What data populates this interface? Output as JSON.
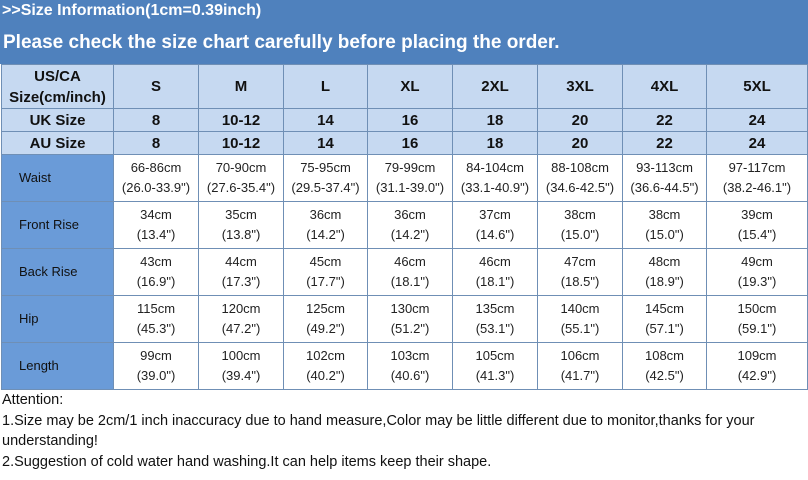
{
  "header": {
    "title": ">>Size Information(1cm=0.39inch)",
    "subtitle": "Please check the size chart carefully before placing the order."
  },
  "table": {
    "corner": [
      "US/CA",
      "Size(cm/inch)"
    ],
    "sizes": [
      "S",
      "M",
      "L",
      "XL",
      "2XL",
      "3XL",
      "4XL",
      "5XL"
    ],
    "uk": {
      "label": "UK Size",
      "values": [
        "8",
        "10-12",
        "14",
        "16",
        "18",
        "20",
        "22",
        "24"
      ]
    },
    "au": {
      "label": "AU Size",
      "values": [
        "8",
        "10-12",
        "14",
        "16",
        "18",
        "20",
        "22",
        "24"
      ]
    },
    "measures": [
      {
        "label": "Waist",
        "cm": [
          "66-86cm",
          "70-90cm",
          "75-95cm",
          "79-99cm",
          "84-104cm",
          "88-108cm",
          "93-113cm",
          "97-117cm"
        ],
        "inch": [
          "(26.0-33.9\")",
          "(27.6-35.4\")",
          "(29.5-37.4\")",
          "(31.1-39.0\")",
          "(33.1-40.9\")",
          "(34.6-42.5\")",
          "(36.6-44.5\")",
          "(38.2-46.1\")"
        ]
      },
      {
        "label": "Front Rise",
        "cm": [
          "34cm",
          "35cm",
          "36cm",
          "36cm",
          "37cm",
          "38cm",
          "38cm",
          "39cm"
        ],
        "inch": [
          "(13.4\")",
          "(13.8\")",
          "(14.2\")",
          "(14.2\")",
          "(14.6\")",
          "(15.0\")",
          "(15.0\")",
          "(15.4\")"
        ]
      },
      {
        "label": "Back Rise",
        "cm": [
          "43cm",
          "44cm",
          "45cm",
          "46cm",
          "46cm",
          "47cm",
          "48cm",
          "49cm"
        ],
        "inch": [
          "(16.9\")",
          "(17.3\")",
          "(17.7\")",
          "(18.1\")",
          "(18.1\")",
          "(18.5\")",
          "(18.9\")",
          "(19.3\")"
        ]
      },
      {
        "label": "Hip",
        "cm": [
          "115cm",
          "120cm",
          "125cm",
          "130cm",
          "135cm",
          "140cm",
          "145cm",
          "150cm"
        ],
        "inch": [
          "(45.3\")",
          "(47.2\")",
          "(49.2\")",
          "(51.2\")",
          "(53.1\")",
          "(55.1\")",
          "(57.1\")",
          "(59.1\")"
        ]
      },
      {
        "label": "Length",
        "cm": [
          "99cm",
          "100cm",
          "102cm",
          "103cm",
          "105cm",
          "106cm",
          "108cm",
          "109cm"
        ],
        "inch": [
          "(39.0\")",
          "(39.4\")",
          "(40.2\")",
          "(40.6\")",
          "(41.3\")",
          "(41.7\")",
          "(42.5\")",
          "(42.9\")"
        ]
      }
    ]
  },
  "notes": [
    "Attention:",
    "1.Size may be 2cm/1 inch inaccuracy due to hand measure,Color may be little different due to monitor,thanks for your understanding!",
    "2.Suggestion of cold water hand washing.It can help items keep their shape."
  ]
}
